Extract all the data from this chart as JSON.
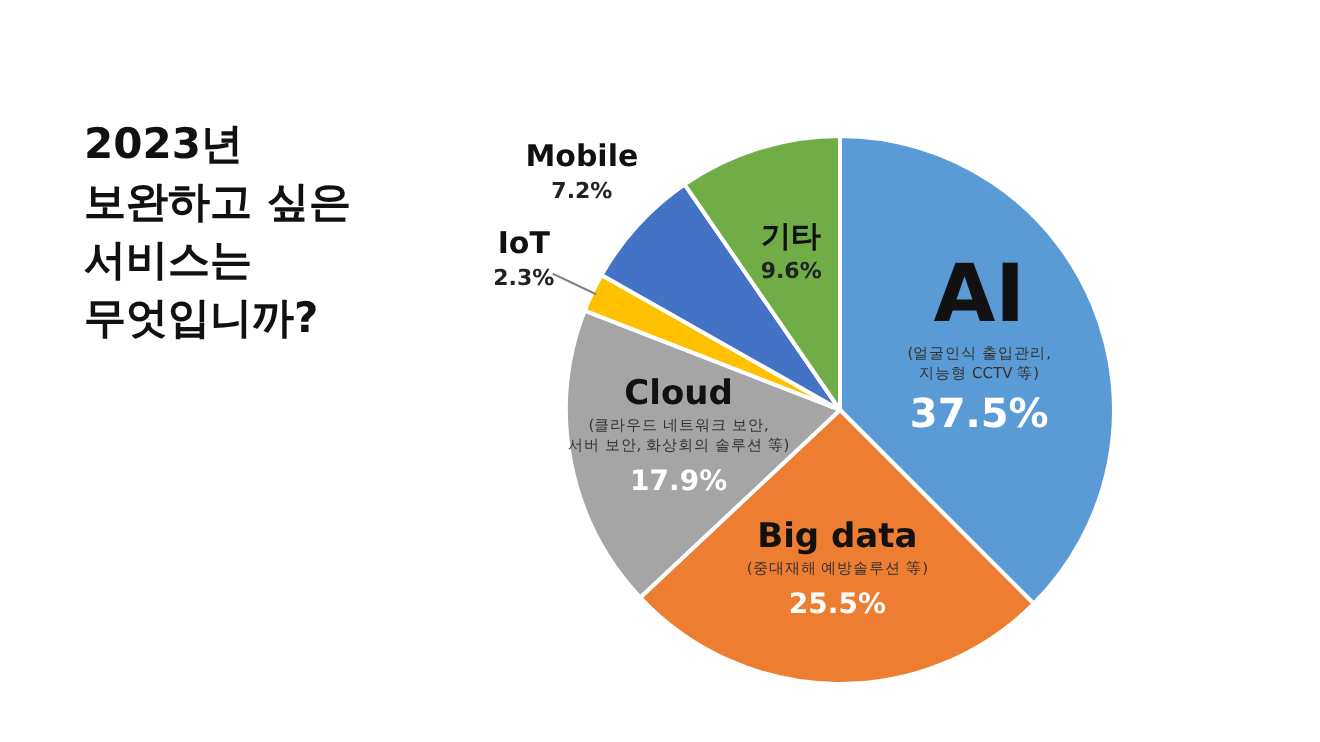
{
  "chart_data": {
    "type": "pie",
    "title": "2023년\n보완하고 싶은\n서비스는\n무엇입니까?",
    "categories": [
      "AI",
      "Big data",
      "Cloud",
      "IoT",
      "Mobile",
      "기타"
    ],
    "values": [
      37.5,
      25.5,
      17.9,
      2.3,
      7.2,
      9.6
    ],
    "colors": [
      "#5b9bd5",
      "#ed7d31",
      "#a5a5a5",
      "#ffc000",
      "#4472c4",
      "#70ad47"
    ],
    "value_labels": [
      "37.5%",
      "25.5%",
      "17.9%",
      "2.3%",
      "7.2%",
      "9.6%"
    ],
    "annotations": [
      {
        "text": "(얼굴인식 출입관리,\n지능형 CCTV 等)",
        "x": "AI"
      },
      {
        "text": "(중대재해 예방솔루션 等)",
        "x": "Big data"
      },
      {
        "text": "(클라우드 네트워크 보안,\n서버 보안, 화상회의 솔루션 等)",
        "x": "Cloud"
      }
    ],
    "legend": false
  }
}
